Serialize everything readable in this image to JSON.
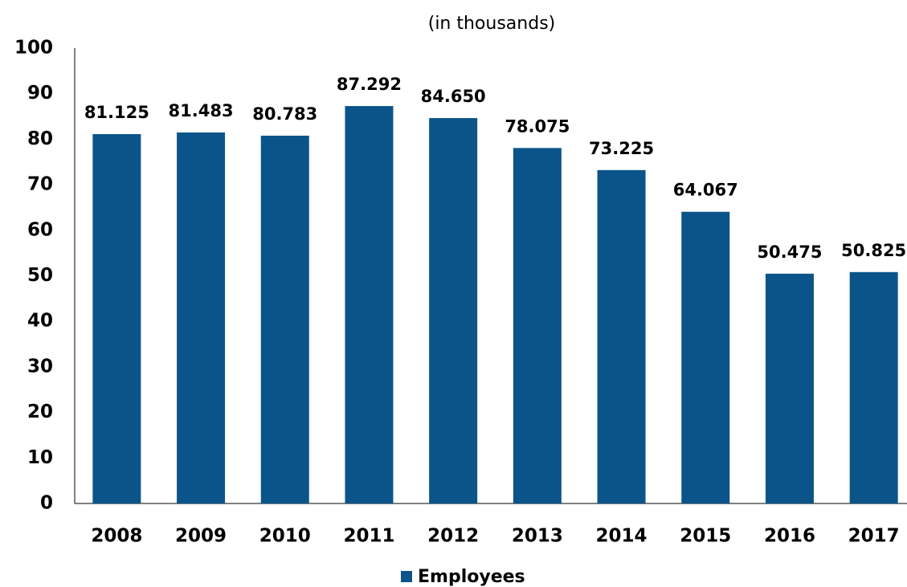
{
  "chart_data": {
    "type": "bar",
    "subtitle": "(in thousands)",
    "categories": [
      "2008",
      "2009",
      "2010",
      "2011",
      "2012",
      "2013",
      "2014",
      "2015",
      "2016",
      "2017"
    ],
    "series": [
      {
        "name": "Employees",
        "color": "#0b5489",
        "values": [
          81.125,
          81.483,
          80.783,
          87.292,
          84.65,
          78.075,
          73.225,
          64.067,
          50.475,
          50.825
        ],
        "value_labels": [
          "81.125",
          "81.483",
          "80.783",
          "87.292",
          "84.650",
          "78.075",
          "73.225",
          "64.067",
          "50.475",
          "50.825"
        ]
      }
    ],
    "ylim": [
      0,
      100
    ],
    "yticks": [
      0,
      10,
      20,
      30,
      40,
      50,
      60,
      70,
      80,
      90,
      100
    ],
    "grid": false,
    "legend": "bottom"
  }
}
